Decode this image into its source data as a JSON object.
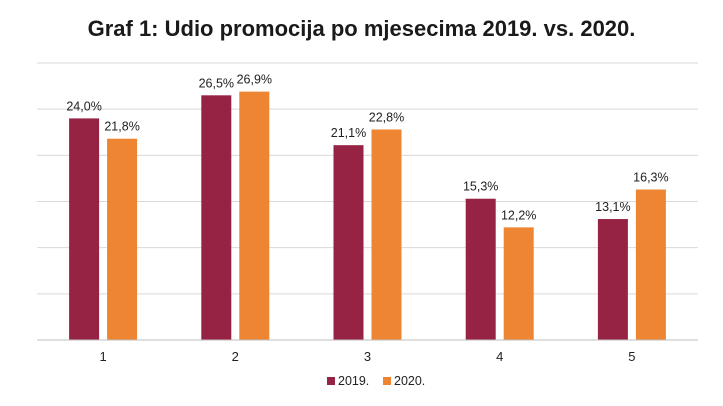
{
  "chart_data": {
    "type": "bar",
    "title": "Graf 1: Udio promocija po mjesecima 2019. vs. 2020.",
    "xlabel": "",
    "ylabel": "",
    "categories": [
      "1",
      "2",
      "3",
      "4",
      "5"
    ],
    "series": [
      {
        "name": "2019.",
        "color": "#962244",
        "values": [
          24.0,
          26.5,
          21.1,
          15.3,
          13.1
        ],
        "labels": [
          "24,0%",
          "26,5%",
          "21,1%",
          "15,3%",
          "13,1%"
        ]
      },
      {
        "name": "2020.",
        "color": "#ED8533",
        "values": [
          21.8,
          26.9,
          22.8,
          12.2,
          16.3
        ],
        "labels": [
          "21,8%",
          "26,9%",
          "22,8%",
          "12,2%",
          "16,3%"
        ]
      }
    ],
    "ylim": [
      0,
      30
    ],
    "grid": true,
    "legend_position": "bottom"
  }
}
